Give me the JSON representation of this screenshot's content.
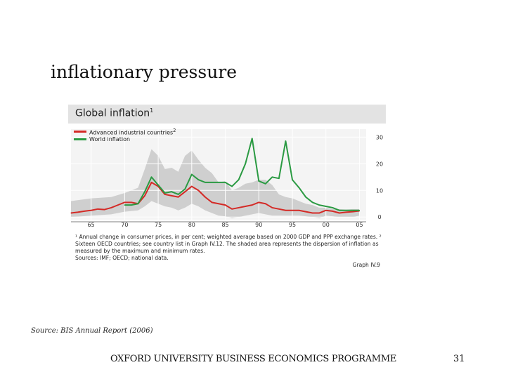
{
  "slide": {
    "title": "inflationary pressure",
    "source": "Source: BIS Annual Report (2006)",
    "footer": "OXFORD UNIVERSITY BUSINESS ECONOMICS PROGRAMME",
    "page_number": "31"
  },
  "chart_data": {
    "type": "line",
    "title": "Global inflation",
    "title_superscript": "1",
    "xlabel": "",
    "ylabel": "",
    "xlim": [
      1962,
      2006
    ],
    "ylim": [
      -1,
      33
    ],
    "x_ticks": [
      "65",
      "70",
      "75",
      "80",
      "85",
      "90",
      "95",
      "00",
      "05"
    ],
    "x_tick_values": [
      1965,
      1970,
      1975,
      1980,
      1985,
      1990,
      1995,
      2000,
      2005
    ],
    "y_ticks": [
      0,
      10,
      20,
      30
    ],
    "grid": true,
    "legend_position": "top-left",
    "series": [
      {
        "name": "Advanced industrial countries",
        "superscript": "2",
        "color": "#d42a26",
        "x": [
          1962,
          1963,
          1964,
          1965,
          1966,
          1967,
          1968,
          1969,
          1970,
          1971,
          1972,
          1973,
          1974,
          1975,
          1976,
          1977,
          1978,
          1979,
          1980,
          1981,
          1982,
          1983,
          1984,
          1985,
          1986,
          1987,
          1988,
          1989,
          1990,
          1991,
          1992,
          1993,
          1994,
          1995,
          1996,
          1997,
          1998,
          1999,
          2000,
          2001,
          2002,
          2003,
          2004,
          2005
        ],
        "y": [
          1.5,
          1.8,
          2.2,
          2.5,
          3.0,
          2.8,
          3.5,
          4.5,
          5.5,
          5.5,
          5.0,
          8.0,
          13.0,
          11.5,
          8.5,
          8.0,
          7.5,
          9.5,
          11.5,
          10.0,
          7.5,
          5.5,
          5.0,
          4.5,
          3.0,
          3.5,
          4.0,
          4.5,
          5.5,
          5.0,
          3.5,
          3.0,
          2.5,
          2.5,
          2.5,
          2.0,
          1.5,
          1.5,
          2.5,
          2.2,
          1.5,
          1.8,
          2.0,
          2.3
        ]
      },
      {
        "name": "World inflation",
        "superscript": "",
        "color": "#2a9a42",
        "x": [
          1970,
          1971,
          1972,
          1973,
          1974,
          1975,
          1976,
          1977,
          1978,
          1979,
          1980,
          1981,
          1982,
          1983,
          1984,
          1985,
          1986,
          1987,
          1988,
          1989,
          1990,
          1991,
          1992,
          1993,
          1994,
          1995,
          1996,
          1997,
          1998,
          1999,
          2000,
          2001,
          2002,
          2003,
          2004,
          2005
        ],
        "y": [
          4.5,
          4.5,
          5.0,
          9.5,
          15.0,
          12.0,
          9.0,
          9.5,
          8.5,
          10.5,
          16.0,
          14.0,
          13.0,
          13.0,
          13.0,
          13.0,
          11.5,
          14.0,
          20.0,
          29.5,
          13.5,
          12.5,
          15.0,
          14.5,
          28.5,
          14.0,
          11.0,
          7.5,
          5.5,
          4.5,
          4.0,
          3.5,
          2.5,
          2.5,
          2.5,
          2.5
        ]
      }
    ],
    "shaded_area": {
      "description_key": "footnote",
      "x": [
        1962,
        1965,
        1968,
        1970,
        1972,
        1973,
        1974,
        1975,
        1976,
        1977,
        1978,
        1979,
        1980,
        1981,
        1982,
        1983,
        1984,
        1985,
        1986,
        1987,
        1988,
        1989,
        1990,
        1991,
        1992,
        1993,
        1994,
        1995,
        1996,
        1997,
        1998,
        1999,
        2000,
        2001,
        2002,
        2003,
        2004,
        2005
      ],
      "min": [
        0.0,
        0.5,
        1.0,
        2.0,
        2.5,
        4.0,
        6.0,
        5.0,
        4.0,
        3.5,
        2.5,
        3.5,
        5.0,
        4.0,
        2.5,
        1.5,
        0.5,
        0.3,
        -0.5,
        0.0,
        0.5,
        1.0,
        1.5,
        1.0,
        0.5,
        0.5,
        0.5,
        0.5,
        0.5,
        0.3,
        0.0,
        -0.5,
        0.5,
        0.3,
        0.0,
        0.0,
        0.0,
        0.5
      ],
      "max": [
        6.0,
        7.0,
        7.5,
        9.0,
        11.0,
        18.0,
        25.5,
        23.0,
        18.0,
        18.5,
        17.0,
        23.0,
        25.0,
        21.5,
        18.5,
        16.5,
        13.0,
        13.5,
        10.0,
        11.0,
        12.5,
        13.0,
        14.0,
        14.0,
        12.0,
        8.5,
        7.5,
        7.0,
        6.0,
        5.0,
        4.5,
        3.5,
        3.5,
        3.0,
        3.0,
        2.8,
        3.0,
        3.0
      ]
    }
  },
  "figure": {
    "footnote": "¹ Annual change in consumer prices, in per cent; weighted average based on 2000 GDP and PPP exchange rates.   ² Sixteen OECD countries; see country list in Graph IV.12. The shaded area represents the dispersion of inflation as measured by the maximum and minimum rates.",
    "sources": "Sources: IMF; OECD; national data.",
    "graph_id": "Graph IV.9"
  }
}
